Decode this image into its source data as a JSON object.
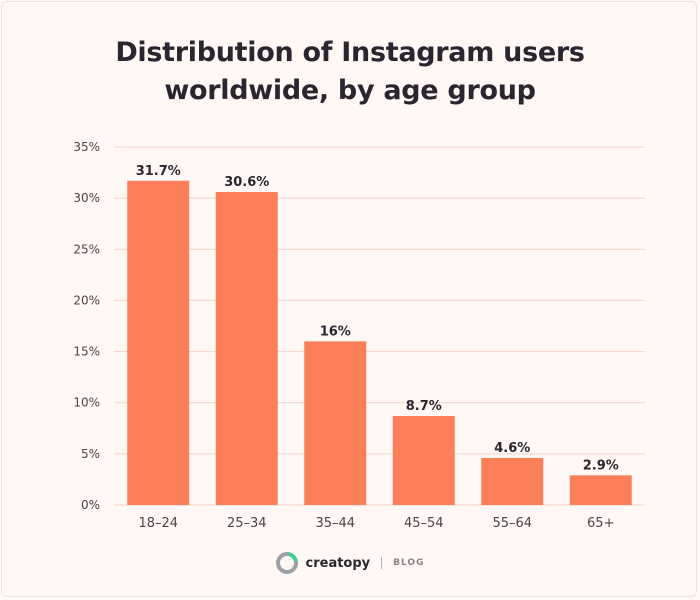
{
  "title": {
    "line1": "Distribution of Instagram users",
    "line2": "worldwide, by age group"
  },
  "brand": {
    "name": "creatopy",
    "tag": "BLOG",
    "logo_icon": "creatopy-logo-icon"
  },
  "colors": {
    "bar": "#fb7f59",
    "grid": "#f5d3c9",
    "text": "#2a2630",
    "tick": "#4a4448",
    "background": "#fff8f5",
    "logo_green": "#3fcf8e",
    "logo_gray": "#9aa0a6"
  },
  "chart_data": {
    "type": "bar",
    "title": "Distribution of Instagram users worldwide, by age group",
    "categories": [
      "18–24",
      "25–34",
      "35–44",
      "45–54",
      "55–64",
      "65+"
    ],
    "values": [
      31.7,
      30.6,
      16,
      8.7,
      4.6,
      2.9
    ],
    "value_labels": [
      "31.7%",
      "30.6%",
      "16%",
      "8.7%",
      "4.6%",
      "2.9%"
    ],
    "xlabel": "",
    "ylabel": "",
    "ylim": [
      0,
      35
    ],
    "yticks": [
      0,
      5,
      10,
      15,
      20,
      25,
      30,
      35
    ],
    "ytick_labels": [
      "0%",
      "5%",
      "10%",
      "15%",
      "20%",
      "25%",
      "30%",
      "35%"
    ],
    "grid": true,
    "legend": "none"
  }
}
